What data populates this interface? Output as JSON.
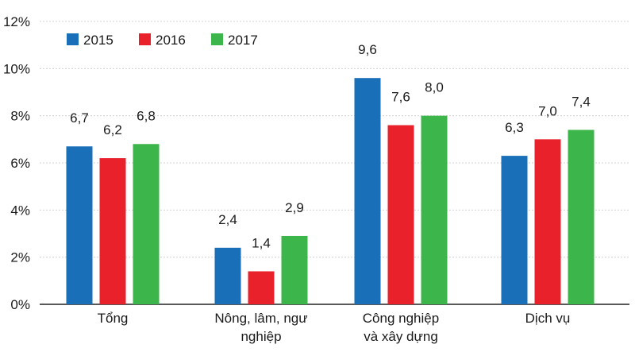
{
  "chart_data": {
    "type": "bar",
    "categories": [
      [
        "Tổng"
      ],
      [
        "Nông, lâm, ngư",
        "nghiệp"
      ],
      [
        "Công nghiệp",
        "và xây dựng"
      ],
      [
        "Dịch vụ"
      ]
    ],
    "series": [
      {
        "name": "2015",
        "color": "#1a6fb9",
        "values": [
          6.7,
          2.4,
          9.6,
          6.3
        ],
        "labels": [
          "6,7",
          "2,4",
          "9,6",
          "6,3"
        ]
      },
      {
        "name": "2016",
        "color": "#e8212b",
        "values": [
          6.2,
          1.4,
          7.6,
          7.0
        ],
        "labels": [
          "6,2",
          "1,4",
          "7,6",
          "7,0"
        ]
      },
      {
        "name": "2017",
        "color": "#3cb54a",
        "values": [
          6.8,
          2.9,
          8.0,
          7.4
        ],
        "labels": [
          "6,8",
          "2,9",
          "8,0",
          "7,4"
        ]
      }
    ],
    "ylim": [
      0,
      12
    ],
    "yticks": [
      0,
      2,
      4,
      6,
      8,
      10,
      12
    ],
    "ytick_labels": [
      "0%",
      "2%",
      "4%",
      "6%",
      "8%",
      "10%",
      "12%"
    ],
    "grid": true,
    "legend_position": "top-left"
  }
}
